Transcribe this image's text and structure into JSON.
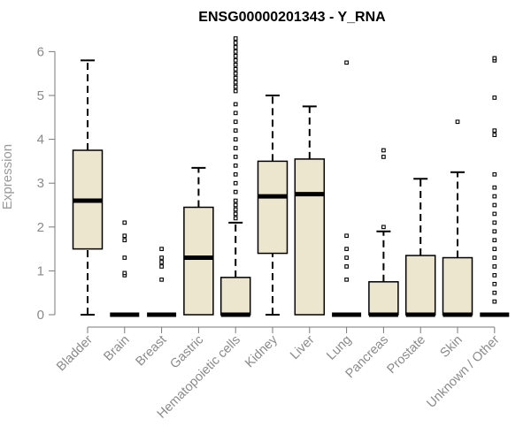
{
  "chart_data": {
    "type": "box",
    "title": "ENSG00000201343 - Y_RNA",
    "xlabel": "",
    "ylabel": "Expression",
    "ylim": [
      0,
      6
    ],
    "yticks": [
      0,
      1,
      2,
      3,
      4,
      5,
      6
    ],
    "box_color": "#ede6cf",
    "categories": [
      "Bladder",
      "Brain",
      "Breast",
      "Gastric",
      "Hematopoietic cells",
      "Kidney",
      "Liver",
      "Lung",
      "Pancreas",
      "Prostate",
      "Skin",
      "Unknown / Other"
    ],
    "boxes": [
      {
        "whisker_low": 0,
        "q1": 1.5,
        "median": 2.6,
        "q3": 3.75,
        "whisker_high": 5.8,
        "outliers": []
      },
      {
        "whisker_low": 0,
        "q1": 0,
        "median": 0,
        "q3": 0,
        "whisker_high": 0,
        "outliers": [
          0.9,
          0.95,
          1.3,
          1.7,
          1.8,
          2.1
        ]
      },
      {
        "whisker_low": 0,
        "q1": 0,
        "median": 0,
        "q3": 0,
        "whisker_high": 0,
        "outliers": [
          0.8,
          1.1,
          1.2,
          1.3,
          1.5
        ]
      },
      {
        "whisker_low": 0,
        "q1": 0,
        "median": 1.3,
        "q3": 2.45,
        "whisker_high": 3.35,
        "outliers": []
      },
      {
        "whisker_low": 0,
        "q1": 0,
        "median": 0,
        "q3": 0.85,
        "whisker_high": 2.1,
        "outliers": [
          2.2,
          2.3,
          2.4,
          2.5,
          2.6,
          2.8,
          3.0,
          3.2,
          3.4,
          3.6,
          3.8,
          4.0,
          4.2,
          4.4,
          4.6,
          4.8,
          5.1,
          5.2,
          5.3,
          5.4,
          5.5,
          5.6,
          5.7,
          5.8,
          5.9,
          6.0,
          6.1,
          6.2,
          6.3
        ]
      },
      {
        "whisker_low": 0,
        "q1": 1.4,
        "median": 2.7,
        "q3": 3.5,
        "whisker_high": 5.0,
        "outliers": []
      },
      {
        "whisker_low": 0,
        "q1": 0,
        "median": 2.75,
        "q3": 3.55,
        "whisker_high": 4.75,
        "outliers": []
      },
      {
        "whisker_low": 0,
        "q1": 0,
        "median": 0,
        "q3": 0,
        "whisker_high": 0,
        "outliers": [
          0.8,
          1.1,
          1.3,
          1.5,
          1.8,
          5.75
        ]
      },
      {
        "whisker_low": 0,
        "q1": 0,
        "median": 0,
        "q3": 0.75,
        "whisker_high": 1.9,
        "outliers": [
          2.0,
          3.6,
          3.75
        ]
      },
      {
        "whisker_low": 0,
        "q1": 0,
        "median": 0,
        "q3": 1.35,
        "whisker_high": 3.1,
        "outliers": []
      },
      {
        "whisker_low": 0,
        "q1": 0,
        "median": 0,
        "q3": 1.3,
        "whisker_high": 3.25,
        "outliers": [
          4.4
        ]
      },
      {
        "whisker_low": 0,
        "q1": 0,
        "median": 0,
        "q3": 0,
        "whisker_high": 0,
        "outliers": [
          0.3,
          0.5,
          0.7,
          0.9,
          1.1,
          1.3,
          1.5,
          1.7,
          1.9,
          2.1,
          2.3,
          2.5,
          2.7,
          2.9,
          3.2,
          4.1,
          4.2,
          4.95,
          5.8,
          5.85
        ]
      }
    ]
  }
}
